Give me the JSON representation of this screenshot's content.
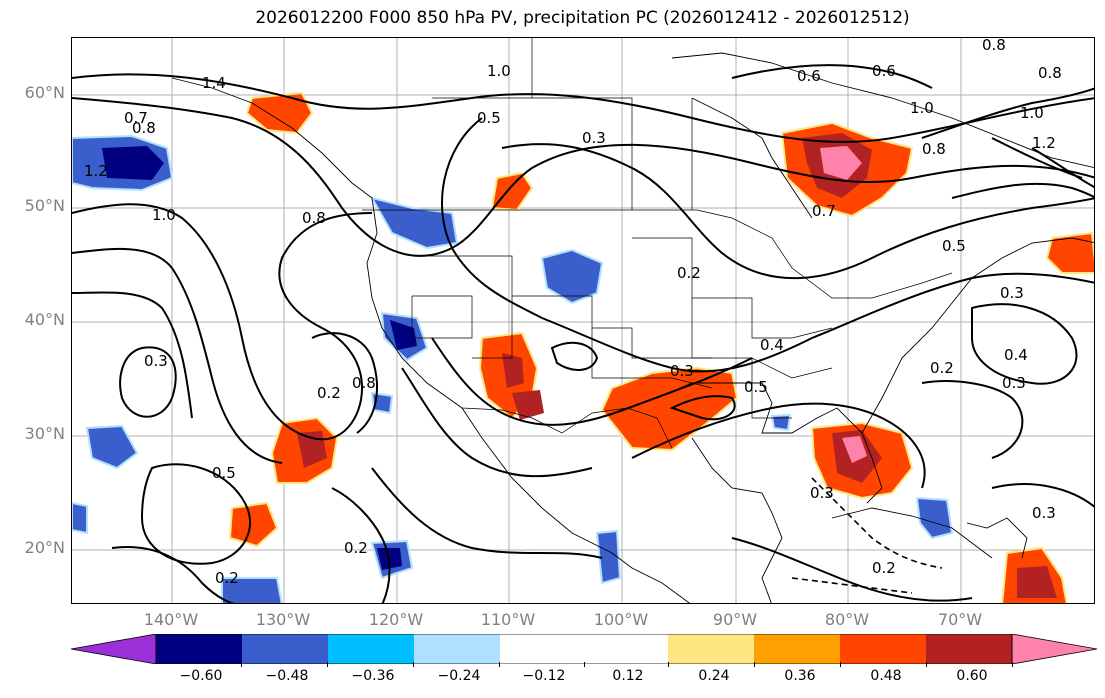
{
  "title": "2026012200 F000 850 hPa PV, precipitation PC (2026012412 - 2026012512)",
  "lat_labels": [
    "60°N",
    "50°N",
    "40°N",
    "30°N",
    "20°N"
  ],
  "lon_labels": [
    "140°W",
    "130°W",
    "120°W",
    "110°W",
    "100°W",
    "90°W",
    "80°W",
    "70°W"
  ],
  "colorbar": {
    "ticks": [
      "−0.60",
      "−0.48",
      "−0.36",
      "−0.24",
      "−0.12",
      "0.12",
      "0.24",
      "0.36",
      "0.48",
      "0.60"
    ],
    "colors": [
      "#9b30d9",
      "#000080",
      "#3a5fcd",
      "#00bfff",
      "#b0e0ff",
      "#ffffff",
      "#ffe680",
      "#ff9f00",
      "#ff4500",
      "#b22222",
      "#ff82ab"
    ]
  },
  "contour_labels": {
    "l1": "1.4",
    "l2": "1.2",
    "l3": "0.7",
    "l4": "0.8",
    "l5": "1.0",
    "l6": "0.8",
    "l7": "0.5",
    "l8": "0.6",
    "l9": "1.0",
    "l10": "0.3",
    "l11": "0.5",
    "l12": "0.4",
    "l13": "0.3",
    "l14": "0.5",
    "l15": "0.2",
    "l16": "0.2",
    "l17": "0.2",
    "l18": "0.3",
    "l19": "0.4",
    "l20": "0.2",
    "l21": "0.3",
    "l22": "0.8",
    "l23": "0.2",
    "l24": "0.5",
    "l25": "0.7",
    "l26": "0.3",
    "l27": "1.0",
    "l28": "0.8",
    "l29": "0.3",
    "l30": "0.6",
    "l31": "0.8",
    "l32": "1.2",
    "l33": "0.8",
    "l34": "1.0",
    "l35": "0.3",
    "l36": "0.2"
  }
}
